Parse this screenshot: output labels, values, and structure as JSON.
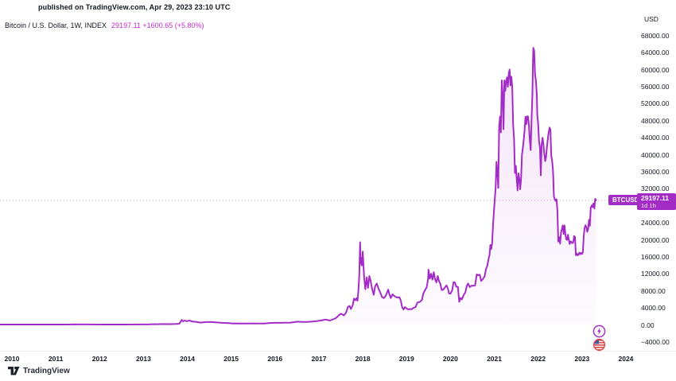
{
  "published_line": "published on TradingView.com, Apr 29, 2023 23:10 UTC",
  "header": {
    "symbol_title": "Bitcoin / U.S. Dollar, 1W, INDEX",
    "quote": "29197.11 +1600.65 (+5.80%)"
  },
  "symbol_tag": "BTCUSD",
  "price_tag": {
    "value": "29197.11",
    "countdown": "1d 1h"
  },
  "price_scale": {
    "unit": "USD",
    "ticks": [
      {
        "value": 68000,
        "label": "68000.00"
      },
      {
        "value": 64000,
        "label": "64000.00"
      },
      {
        "value": 60000,
        "label": "60000.00"
      },
      {
        "value": 56000,
        "label": "56000.00"
      },
      {
        "value": 52000,
        "label": "52000.00"
      },
      {
        "value": 48000,
        "label": "48000.00"
      },
      {
        "value": 44000,
        "label": "44000.00"
      },
      {
        "value": 40000,
        "label": "40000.00"
      },
      {
        "value": 36000,
        "label": "36000.00"
      },
      {
        "value": 32000,
        "label": "32000.00"
      },
      {
        "value": 28000,
        "label": "28000.00"
      },
      {
        "value": 24000,
        "label": "24000.00"
      },
      {
        "value": 20000,
        "label": "20000.00"
      },
      {
        "value": 16000,
        "label": "16000.00"
      },
      {
        "value": 12000,
        "label": "12000.00"
      },
      {
        "value": 8000,
        "label": "8000.00"
      },
      {
        "value": 4000,
        "label": "4000.00"
      },
      {
        "value": 0,
        "label": "0.00"
      },
      {
        "value": -4000,
        "label": "−4000.00"
      }
    ]
  },
  "time_scale": {
    "years": [
      2010,
      2011,
      2012,
      2013,
      2014,
      2015,
      2016,
      2017,
      2018,
      2019,
      2020,
      2021,
      2022,
      2023,
      2024
    ]
  },
  "brand": {
    "name": "TradingView"
  },
  "icons": {
    "flash": "lightning-bolt",
    "flag": "us-flag"
  },
  "colors": {
    "accent": "#a42cc6",
    "accent-bright": "#c12bcf",
    "accent-dark": "#8e23ad",
    "ink": "#131722"
  },
  "chart_data": {
    "type": "area",
    "title": "Bitcoin / U.S. Dollar, 1W, INDEX",
    "symbol": "BTCUSD",
    "timeframe": "1W",
    "ylabel": "USD",
    "x_unit": "year",
    "x_ticks": [
      2010,
      2011,
      2012,
      2013,
      2014,
      2015,
      2016,
      2017,
      2018,
      2019,
      2020,
      2021,
      2022,
      2023,
      2024
    ],
    "y_ticks": [
      68000,
      64000,
      60000,
      56000,
      52000,
      48000,
      44000,
      40000,
      36000,
      32000,
      28000,
      24000,
      20000,
      16000,
      12000,
      8000,
      4000,
      0,
      -4000
    ],
    "last_price": 29197.11,
    "change_abs": 1600.65,
    "change_pct": 5.8,
    "grid": false,
    "legend_position": "top-left",
    "points": [
      [
        2009.73,
        0.05
      ],
      [
        2010.5,
        0.07
      ],
      [
        2010.9,
        0.2
      ],
      [
        2011.3,
        0.9
      ],
      [
        2011.45,
        30
      ],
      [
        2011.5,
        15
      ],
      [
        2011.75,
        11
      ],
      [
        2012.0,
        5.3
      ],
      [
        2012.3,
        5
      ],
      [
        2012.6,
        9
      ],
      [
        2012.9,
        12.5
      ],
      [
        2013.1,
        25
      ],
      [
        2013.2,
        70
      ],
      [
        2013.27,
        93
      ],
      [
        2013.3,
        80
      ],
      [
        2013.45,
        110
      ],
      [
        2013.6,
        100
      ],
      [
        2013.75,
        135
      ],
      [
        2013.82,
        200
      ],
      [
        2013.87,
        1080
      ],
      [
        2013.9,
        745
      ],
      [
        2013.93,
        920
      ],
      [
        2014.0,
        805
      ],
      [
        2014.05,
        940
      ],
      [
        2014.12,
        700
      ],
      [
        2014.2,
        630
      ],
      [
        2014.3,
        450
      ],
      [
        2014.42,
        585
      ],
      [
        2014.53,
        600
      ],
      [
        2014.65,
        500
      ],
      [
        2014.8,
        385
      ],
      [
        2014.95,
        320
      ],
      [
        2015.05,
        220
      ],
      [
        2015.12,
        265
      ],
      [
        2015.2,
        235
      ],
      [
        2015.35,
        245
      ],
      [
        2015.5,
        265
      ],
      [
        2015.62,
        240
      ],
      [
        2015.75,
        235
      ],
      [
        2015.85,
        330
      ],
      [
        2015.92,
        375
      ],
      [
        2016.0,
        430
      ],
      [
        2016.08,
        390
      ],
      [
        2016.2,
        420
      ],
      [
        2016.35,
        455
      ],
      [
        2016.45,
        585
      ],
      [
        2016.5,
        670
      ],
      [
        2016.56,
        650
      ],
      [
        2016.62,
        590
      ],
      [
        2016.72,
        615
      ],
      [
        2016.85,
        710
      ],
      [
        2016.95,
        795
      ],
      [
        2017.0,
        905
      ],
      [
        2017.08,
        1010
      ],
      [
        2017.15,
        1180
      ],
      [
        2017.2,
        1065
      ],
      [
        2017.25,
        935
      ],
      [
        2017.32,
        1220
      ],
      [
        2017.38,
        1450
      ],
      [
        2017.42,
        1800
      ],
      [
        2017.46,
        2250
      ],
      [
        2017.5,
        2550
      ],
      [
        2017.53,
        2400
      ],
      [
        2017.57,
        2150
      ],
      [
        2017.62,
        2800
      ],
      [
        2017.66,
        4150
      ],
      [
        2017.7,
        4350
      ],
      [
        2017.73,
        3650
      ],
      [
        2017.77,
        4450
      ],
      [
        2017.8,
        6100
      ],
      [
        2017.83,
        5700
      ],
      [
        2017.86,
        6200
      ],
      [
        2017.88,
        5600
      ],
      [
        2017.9,
        7900
      ],
      [
        2017.92,
        11350
      ],
      [
        2017.94,
        19350
      ],
      [
        2017.95,
        14250
      ],
      [
        2017.96,
        15650
      ],
      [
        2017.98,
        13900
      ],
      [
        2018.0,
        17150
      ],
      [
        2018.03,
        11250
      ],
      [
        2018.06,
        8300
      ],
      [
        2018.09,
        11100
      ],
      [
        2018.12,
        8600
      ],
      [
        2018.15,
        11400
      ],
      [
        2018.18,
        10300
      ],
      [
        2018.21,
        8550
      ],
      [
        2018.25,
        7000
      ],
      [
        2018.28,
        8950
      ],
      [
        2018.32,
        9650
      ],
      [
        2018.36,
        8400
      ],
      [
        2018.4,
        7500
      ],
      [
        2018.44,
        6450
      ],
      [
        2018.48,
        6200
      ],
      [
        2018.52,
        6700
      ],
      [
        2018.55,
        7400
      ],
      [
        2018.58,
        8200
      ],
      [
        2018.61,
        7000
      ],
      [
        2018.64,
        6250
      ],
      [
        2018.68,
        7100
      ],
      [
        2018.72,
        6700
      ],
      [
        2018.76,
        6450
      ],
      [
        2018.8,
        6350
      ],
      [
        2018.84,
        6400
      ],
      [
        2018.87,
        5550
      ],
      [
        2018.9,
        4050
      ],
      [
        2018.93,
        3550
      ],
      [
        2018.96,
        4100
      ],
      [
        2019.0,
        3750
      ],
      [
        2019.04,
        3550
      ],
      [
        2019.08,
        3650
      ],
      [
        2019.12,
        3600
      ],
      [
        2019.16,
        3950
      ],
      [
        2019.2,
        4050
      ],
      [
        2019.25,
        5200
      ],
      [
        2019.3,
        5300
      ],
      [
        2019.35,
        5800
      ],
      [
        2019.38,
        7250
      ],
      [
        2019.42,
        8050
      ],
      [
        2019.46,
        8800
      ],
      [
        2019.49,
        10750
      ],
      [
        2019.5,
        12900
      ],
      [
        2019.53,
        10800
      ],
      [
        2019.56,
        11950
      ],
      [
        2019.59,
        10550
      ],
      [
        2019.62,
        12300
      ],
      [
        2019.65,
        10600
      ],
      [
        2019.68,
        9900
      ],
      [
        2019.71,
        11400
      ],
      [
        2019.74,
        10150
      ],
      [
        2019.77,
        9600
      ],
      [
        2019.8,
        8100
      ],
      [
        2019.84,
        8250
      ],
      [
        2019.88,
        8800
      ],
      [
        2019.91,
        9200
      ],
      [
        2019.94,
        8500
      ],
      [
        2019.97,
        7300
      ],
      [
        2020.0,
        7250
      ],
      [
        2020.04,
        8050
      ],
      [
        2020.07,
        9950
      ],
      [
        2020.1,
        9900
      ],
      [
        2020.13,
        8900
      ],
      [
        2020.17,
        8850
      ],
      [
        2020.2,
        5350
      ],
      [
        2020.23,
        6250
      ],
      [
        2020.26,
        5900
      ],
      [
        2020.3,
        6900
      ],
      [
        2020.34,
        7550
      ],
      [
        2020.37,
        8950
      ],
      [
        2020.4,
        9650
      ],
      [
        2020.44,
        8800
      ],
      [
        2020.48,
        9150
      ],
      [
        2020.52,
        9100
      ],
      [
        2020.56,
        9200
      ],
      [
        2020.6,
        11800
      ],
      [
        2020.63,
        11600
      ],
      [
        2020.67,
        11700
      ],
      [
        2020.7,
        10250
      ],
      [
        2020.74,
        10700
      ],
      [
        2020.78,
        11350
      ],
      [
        2020.81,
        13050
      ],
      [
        2020.84,
        13800
      ],
      [
        2020.87,
        15500
      ],
      [
        2020.89,
        16300
      ],
      [
        2020.91,
        18700
      ],
      [
        2020.93,
        17750
      ],
      [
        2020.95,
        19150
      ],
      [
        2020.97,
        23300
      ],
      [
        2020.99,
        26450
      ],
      [
        2021.01,
        29400
      ],
      [
        2021.03,
        32150
      ],
      [
        2021.05,
        38250
      ],
      [
        2021.07,
        35850
      ],
      [
        2021.09,
        32100
      ],
      [
        2021.11,
        46350
      ],
      [
        2021.13,
        48900
      ],
      [
        2021.15,
        45150
      ],
      [
        2021.17,
        57400
      ],
      [
        2021.19,
        54100
      ],
      [
        2021.21,
        45900
      ],
      [
        2021.23,
        57400
      ],
      [
        2021.25,
        54900
      ],
      [
        2021.27,
        57100
      ],
      [
        2021.29,
        58100
      ],
      [
        2021.31,
        55900
      ],
      [
        2021.33,
        59000
      ],
      [
        2021.35,
        59950
      ],
      [
        2021.37,
        56200
      ],
      [
        2021.39,
        58250
      ],
      [
        2021.41,
        55800
      ],
      [
        2021.43,
        46700
      ],
      [
        2021.45,
        43600
      ],
      [
        2021.47,
        35600
      ],
      [
        2021.49,
        37300
      ],
      [
        2021.51,
        34250
      ],
      [
        2021.53,
        31550
      ],
      [
        2021.55,
        35550
      ],
      [
        2021.57,
        34250
      ],
      [
        2021.59,
        31800
      ],
      [
        2021.61,
        34300
      ],
      [
        2021.63,
        39850
      ],
      [
        2021.66,
        42250
      ],
      [
        2021.69,
        45600
      ],
      [
        2021.71,
        48850
      ],
      [
        2021.73,
        47100
      ],
      [
        2021.75,
        48950
      ],
      [
        2021.77,
        48900
      ],
      [
        2021.79,
        46750
      ],
      [
        2021.81,
        43200
      ],
      [
        2021.83,
        41000
      ],
      [
        2021.85,
        48200
      ],
      [
        2021.87,
        54700
      ],
      [
        2021.88,
        61500
      ],
      [
        2021.89,
        65050
      ],
      [
        2021.91,
        64300
      ],
      [
        2021.93,
        58700
      ],
      [
        2021.95,
        57300
      ],
      [
        2021.97,
        54000
      ],
      [
        2021.98,
        49300
      ],
      [
        2022.0,
        47150
      ],
      [
        2022.02,
        43100
      ],
      [
        2022.04,
        41700
      ],
      [
        2022.06,
        35050
      ],
      [
        2022.08,
        42400
      ],
      [
        2022.1,
        43900
      ],
      [
        2022.12,
        42400
      ],
      [
        2022.14,
        40100
      ],
      [
        2022.16,
        38400
      ],
      [
        2022.18,
        39400
      ],
      [
        2022.2,
        41750
      ],
      [
        2022.23,
        44550
      ],
      [
        2022.26,
        46300
      ],
      [
        2022.28,
        45800
      ],
      [
        2022.3,
        39700
      ],
      [
        2022.32,
        38450
      ],
      [
        2022.34,
        36050
      ],
      [
        2022.36,
        30100
      ],
      [
        2022.38,
        29450
      ],
      [
        2022.4,
        29050
      ],
      [
        2022.42,
        29450
      ],
      [
        2022.44,
        26750
      ],
      [
        2022.46,
        19500
      ],
      [
        2022.48,
        20550
      ],
      [
        2022.5,
        19000
      ],
      [
        2022.52,
        21600
      ],
      [
        2022.54,
        22450
      ],
      [
        2022.56,
        23300
      ],
      [
        2022.58,
        21300
      ],
      [
        2022.6,
        23300
      ],
      [
        2022.62,
        21250
      ],
      [
        2022.64,
        20050
      ],
      [
        2022.66,
        19900
      ],
      [
        2022.68,
        21100
      ],
      [
        2022.7,
        19950
      ],
      [
        2022.72,
        18900
      ],
      [
        2022.74,
        19550
      ],
      [
        2022.76,
        19400
      ],
      [
        2022.78,
        19100
      ],
      [
        2022.8,
        19300
      ],
      [
        2022.82,
        20800
      ],
      [
        2022.84,
        20600
      ],
      [
        2022.86,
        16300
      ],
      [
        2022.88,
        16700
      ],
      [
        2022.9,
        16250
      ],
      [
        2022.92,
        16450
      ],
      [
        2022.94,
        16900
      ],
      [
        2022.96,
        16500
      ],
      [
        2022.98,
        16850
      ],
      [
        2023.0,
        16600
      ],
      [
        2023.02,
        16950
      ],
      [
        2023.04,
        20900
      ],
      [
        2023.06,
        22700
      ],
      [
        2023.08,
        23350
      ],
      [
        2023.1,
        22950
      ],
      [
        2023.12,
        21800
      ],
      [
        2023.14,
        22400
      ],
      [
        2023.16,
        24650
      ],
      [
        2023.18,
        23200
      ],
      [
        2023.2,
        27450
      ],
      [
        2023.22,
        28000
      ],
      [
        2023.24,
        27600
      ],
      [
        2023.26,
        28450
      ],
      [
        2023.28,
        27300
      ],
      [
        2023.3,
        29550
      ],
      [
        2023.32,
        29197.11
      ]
    ]
  }
}
